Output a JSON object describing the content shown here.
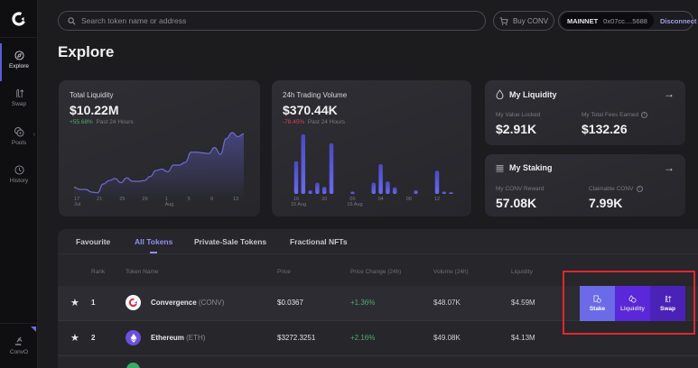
{
  "sidebar": {
    "logo": "convergence-logo",
    "items": [
      {
        "label": "Explore",
        "icon": "compass-icon",
        "active": true
      },
      {
        "label": "Swap",
        "icon": "swap-arrows-icon"
      },
      {
        "label": "Pools",
        "icon": "pools-icon"
      },
      {
        "label": "History",
        "icon": "history-clock-icon"
      }
    ],
    "bottom": {
      "label": "ConvO",
      "icon": "gavel-icon"
    }
  },
  "topbar": {
    "search_placeholder": "Search token name or address",
    "buy_label": "Buy CONV",
    "network": "MAINNET",
    "address": "0x07cc....5688",
    "disconnect_label": "Disconnect"
  },
  "page_title": "Explore",
  "total_liquidity": {
    "title": "Total Liquidity",
    "value": "$10.22M",
    "change": "+55.68%",
    "change_suffix": "Past 24 Hours",
    "x_ticks": [
      "17",
      "21",
      "25",
      "29",
      "1",
      "5",
      "9",
      "13"
    ],
    "x_sublabels": {
      "17": "Jul",
      "1": "Aug"
    }
  },
  "trading_volume": {
    "title": "24h Trading Volume",
    "value": "$370.44K",
    "change": "-78.45%",
    "change_suffix": "Past 24 Hours",
    "x_ticks": [
      "16",
      "20",
      "00",
      "04",
      "08",
      "12"
    ],
    "x_sublabels": {
      "16": "15 Aug",
      "00": "16 Aug"
    }
  },
  "my_liquidity": {
    "title": "My Liquidity",
    "value_locked_label": "My Value Locked",
    "value_locked": "$2.91K",
    "fees_label": "My Total Fees Earned",
    "fees": "$132.26"
  },
  "my_staking": {
    "title": "My Staking",
    "reward_label": "My CONV Reward",
    "reward": "57.08K",
    "claimable_label": "Claimable CONV",
    "claimable": "7.99K"
  },
  "tabs": [
    {
      "label": "Favourite"
    },
    {
      "label": "All Tokens",
      "active": true
    },
    {
      "label": "Private-Sale Tokens"
    },
    {
      "label": "Fractional NFTs"
    }
  ],
  "table": {
    "headers": [
      "Rank",
      "Token Name",
      "Price",
      "Price Change (24h)",
      "Volume (24h)",
      "Liquidity"
    ],
    "rows": [
      {
        "rank": "1",
        "name": "Convergence",
        "symbol": "(CONV)",
        "price": "$0.0367",
        "change": "+1.36%",
        "volume": "$48.07K",
        "liquidity": "$4.59M"
      },
      {
        "rank": "2",
        "name": "Ethereum",
        "symbol": "(ETH)",
        "price": "$3272.3251",
        "change": "+2.16%",
        "volume": "$49.08K",
        "liquidity": "$4.13M"
      }
    ],
    "actions": [
      "Stake",
      "Liquidity",
      "Swap"
    ]
  },
  "chart_data": [
    {
      "type": "area",
      "title": "Total Liquidity",
      "x": [
        "17 Jul",
        "18",
        "19",
        "20",
        "21",
        "22",
        "23",
        "24",
        "25",
        "26",
        "27",
        "28",
        "29",
        "30",
        "31",
        "1 Aug",
        "2",
        "3",
        "4",
        "5",
        "6",
        "7",
        "8",
        "9",
        "10",
        "11",
        "12",
        "13",
        "14",
        "15"
      ],
      "values": [
        2.3,
        2.0,
        2.0,
        1.6,
        1.5,
        2.8,
        3.3,
        3.6,
        3.0,
        3.7,
        3.2,
        3.2,
        3.3,
        3.9,
        4.8,
        5.0,
        4.6,
        5.6,
        5.6,
        6.0,
        7.5,
        7.5,
        7.4,
        7.3,
        8.2,
        7.2,
        9.5,
        10.4,
        9.8,
        10.22
      ],
      "x_ticks": [
        "17",
        "21",
        "25",
        "29",
        "1",
        "5",
        "9",
        "13"
      ],
      "grid": false
    },
    {
      "type": "bar",
      "title": "24h Trading Volume",
      "categories": [
        "16",
        "17",
        "18",
        "19",
        "20",
        "21",
        "22",
        "23",
        "00",
        "01",
        "02",
        "03",
        "04",
        "05",
        "06",
        "07",
        "08",
        "09",
        "10",
        "11",
        "12",
        "13",
        "14"
      ],
      "values": [
        55,
        100,
        6,
        19,
        12,
        85,
        0,
        0,
        4,
        0,
        0,
        19,
        50,
        21,
        11,
        0,
        0,
        6,
        0,
        0,
        39,
        4,
        1
      ],
      "x_ticks": [
        "16",
        "20",
        "00",
        "04",
        "08",
        "12"
      ],
      "grid": false
    }
  ]
}
